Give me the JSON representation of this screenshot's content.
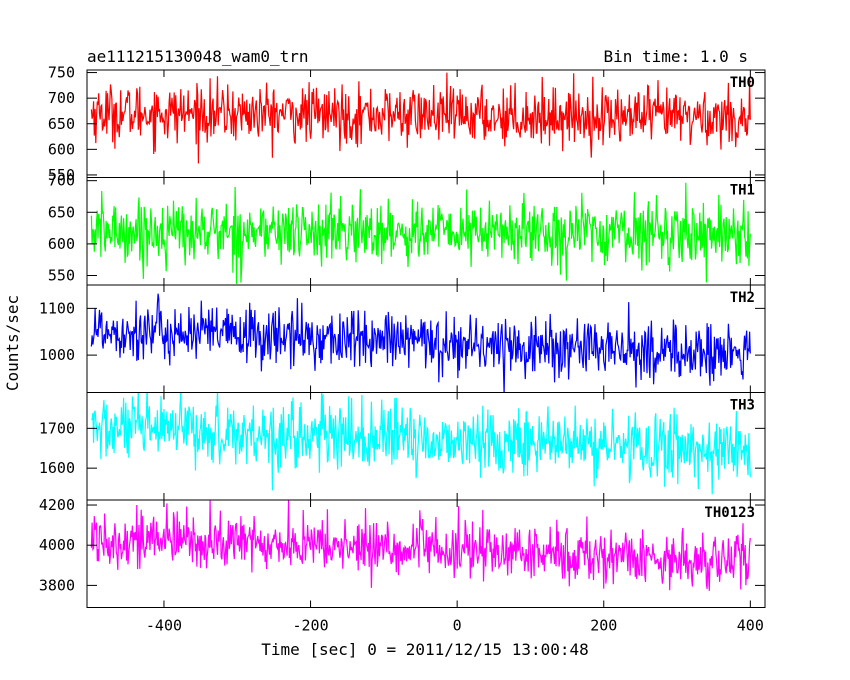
{
  "chart_data": {
    "type": "line",
    "title": "ae111215130048_wam0_trn",
    "subtitle": "Bin time: 1.0 s",
    "xlabel": "Time [sec] 0 = 2011/12/15 13:00:48",
    "ylabel": "Counts/sec",
    "xlim": [
      -505,
      420
    ],
    "xticks": [
      -400,
      -200,
      0,
      200,
      400
    ],
    "x_start": -499,
    "x_end": 400,
    "x_step": 1,
    "series": [
      {
        "name": "TH0",
        "color": "#ff0000",
        "ylim": [
          545,
          755
        ],
        "yticks": [
          550,
          600,
          650,
          700,
          750
        ],
        "mean_start": 672,
        "mean_end": 662,
        "spread": 28
      },
      {
        "name": "TH1",
        "color": "#00ff00",
        "ylim": [
          535,
          705
        ],
        "yticks": [
          550,
          600,
          650,
          700
        ],
        "mean_start": 620,
        "mean_end": 618,
        "spread": 25
      },
      {
        "name": "TH2",
        "color": "#0000ff",
        "ylim": [
          920,
          1150
        ],
        "yticks": [
          1000,
          1100
        ],
        "mean_start": 1055,
        "mean_end": 1000,
        "spread": 32
      },
      {
        "name": "TH3",
        "color": "#00ffff",
        "ylim": [
          1520,
          1790
        ],
        "yticks": [
          1600,
          1700
        ],
        "mean_start": 1700,
        "mean_end": 1645,
        "spread": 42
      },
      {
        "name": "TH0123",
        "color": "#ff00ff",
        "ylim": [
          3690,
          4225
        ],
        "yticks": [
          3800,
          4000,
          4200
        ],
        "mean_start": 4040,
        "mean_end": 3920,
        "spread": 70
      }
    ]
  }
}
